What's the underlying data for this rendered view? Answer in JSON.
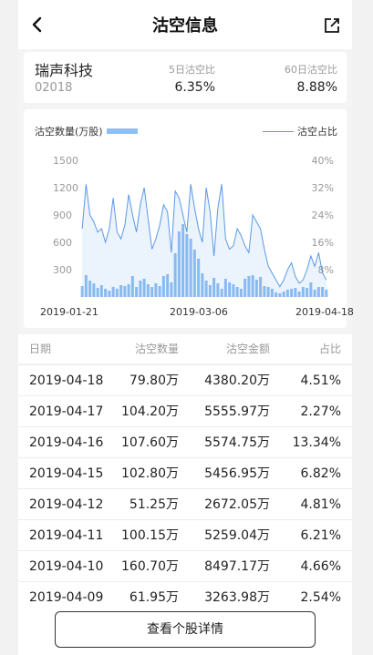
{
  "nav": {
    "title": "沽空信息"
  },
  "stock": {
    "name": "瑞声科技",
    "code": "02018",
    "ratio5_label": "5日沽空比",
    "ratio5_value": "6.35%",
    "ratio60_label": "60日沽空比",
    "ratio60_value": "8.88%"
  },
  "chart_data": {
    "type": "bar",
    "legend_bar": "沽空数量(万股)",
    "legend_line": "沽空占比",
    "y_left_ticks": [
      "1500",
      "1200",
      "900",
      "600",
      "300"
    ],
    "y_right_ticks": [
      "40%",
      "32%",
      "24%",
      "16%",
      "8%"
    ],
    "y_left_range": [
      0,
      1500
    ],
    "y_right_range": [
      0,
      40
    ],
    "x_labels": [
      "2019-01-21",
      "2019-03-06",
      "2019-04-18"
    ],
    "bar_color": "#8fbff2",
    "line_color": "#5a9ae6",
    "series": [
      {
        "name": "沽空数量(万股)",
        "values": [
          120,
          240,
          180,
          150,
          100,
          130,
          90,
          70,
          110,
          90,
          130,
          120,
          140,
          230,
          110,
          180,
          200,
          140,
          110,
          150,
          120,
          230,
          250,
          160,
          480,
          720,
          800,
          690,
          640,
          520,
          420,
          260,
          180,
          130,
          210,
          150,
          90,
          200,
          160,
          140,
          110,
          90,
          200,
          230,
          240,
          190,
          220,
          120,
          110,
          90,
          50,
          40,
          60,
          80,
          90,
          100,
          60,
          110,
          100,
          160,
          80,
          110,
          110,
          80
        ]
      },
      {
        "name": "沽空占比",
        "values": [
          20,
          33,
          24,
          22,
          19,
          20,
          16,
          20,
          29,
          19,
          17,
          21,
          30,
          24,
          19,
          27,
          32,
          23,
          14,
          17,
          21,
          27,
          25,
          13,
          31,
          29,
          24,
          19,
          33,
          26,
          20,
          16,
          32,
          25,
          12,
          26,
          33,
          17,
          14,
          15,
          20,
          18,
          15,
          13,
          24,
          22,
          20,
          14,
          9,
          7,
          5,
          3,
          5,
          8,
          10,
          6,
          4,
          5,
          8,
          12,
          9,
          13,
          7,
          5
        ]
      }
    ]
  },
  "table": {
    "headers": {
      "date": "日期",
      "qty": "沽空数量",
      "amount": "沽空金额",
      "ratio": "占比"
    },
    "rows": [
      {
        "date": "2019-04-18",
        "qty": "79.80万",
        "amount": "4380.20万",
        "ratio": "4.51%"
      },
      {
        "date": "2019-04-17",
        "qty": "104.20万",
        "amount": "5555.97万",
        "ratio": "2.27%"
      },
      {
        "date": "2019-04-16",
        "qty": "107.60万",
        "amount": "5574.75万",
        "ratio": "13.34%"
      },
      {
        "date": "2019-04-15",
        "qty": "102.80万",
        "amount": "5456.95万",
        "ratio": "6.82%"
      },
      {
        "date": "2019-04-12",
        "qty": "51.25万",
        "amount": "2672.05万",
        "ratio": "4.81%"
      },
      {
        "date": "2019-04-11",
        "qty": "100.15万",
        "amount": "5259.04万",
        "ratio": "6.21%"
      },
      {
        "date": "2019-04-10",
        "qty": "160.70万",
        "amount": "8497.17万",
        "ratio": "4.66%"
      },
      {
        "date": "2019-04-09",
        "qty": "61.95万",
        "amount": "3263.98万",
        "ratio": "2.54%"
      }
    ]
  },
  "footer": {
    "detail_button": "查看个股详情"
  }
}
